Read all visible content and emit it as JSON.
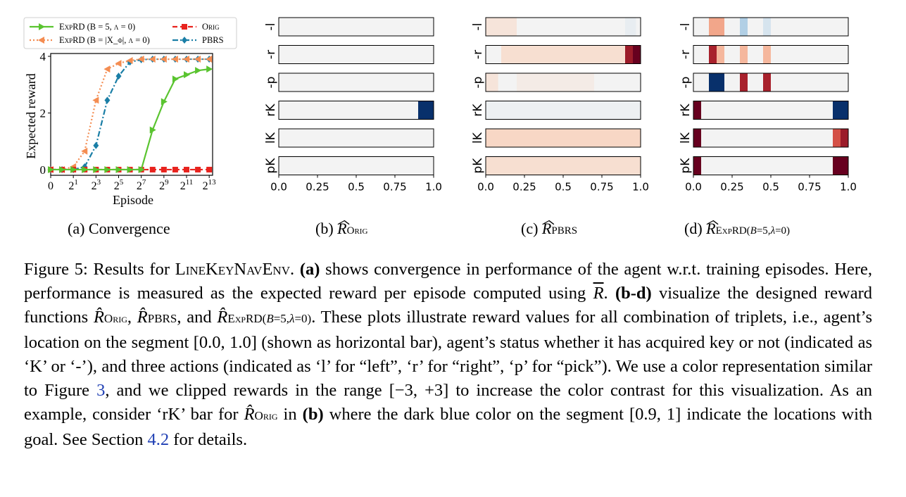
{
  "panel_a": {
    "ylabel": "Expected reward",
    "xlabel": "Episode",
    "caption": "(a) Convergence"
  },
  "panel_b_caption": "(b)",
  "panel_c_caption": "(c)",
  "panel_d_caption": "(d)",
  "chart_data": [
    {
      "type": "line",
      "xlabel": "Episode",
      "ylabel": "Expected reward",
      "ylim": [
        0,
        4
      ],
      "x_ticks": [
        "0",
        "2^1",
        "2^3",
        "2^5",
        "2^7",
        "2^9",
        "2^11",
        "2^13"
      ],
      "y_ticks": [
        "0",
        "2",
        "4"
      ],
      "legend": "top (above plot), 2 columns",
      "series": [
        {
          "name": "ExpRD (B = 5, λ = 0)",
          "color": "#5ac430",
          "style": "solid",
          "marker": "triangle-right",
          "x": [
            0,
            1,
            2,
            4,
            8,
            16,
            32,
            64,
            128,
            256,
            512,
            1024,
            2048,
            4096,
            8192
          ],
          "y": [
            0,
            0,
            0,
            0,
            0,
            0,
            0,
            0,
            0,
            1.4,
            2.4,
            3.2,
            3.35,
            3.5,
            3.55
          ]
        },
        {
          "name": "ExpRD (B = |X_φ|, λ = 0)",
          "color": "#f48d52",
          "style": "dotted",
          "marker": "triangle-left",
          "x": [
            0,
            1,
            2,
            4,
            8,
            16,
            32,
            64,
            128,
            256,
            512,
            1024,
            2048,
            4096,
            8192
          ],
          "y": [
            0,
            0,
            0.1,
            0.65,
            2.45,
            3.55,
            3.75,
            3.85,
            3.9,
            3.9,
            3.9,
            3.9,
            3.9,
            3.9,
            3.9
          ]
        },
        {
          "name": "Orig",
          "color": "#e8231e",
          "style": "dashed",
          "marker": "square",
          "x": [
            0,
            1,
            2,
            4,
            8,
            16,
            32,
            64,
            128,
            256,
            512,
            1024,
            2048,
            4096,
            8192
          ],
          "y": [
            0,
            0,
            0,
            0,
            0,
            0,
            0,
            0,
            0,
            0,
            0,
            0,
            0,
            0,
            0
          ]
        },
        {
          "name": "PBRS",
          "color": "#1a7ea6",
          "style": "dashdot",
          "marker": "diamond",
          "x": [
            0,
            1,
            2,
            4,
            8,
            16,
            32,
            64,
            128,
            256,
            512,
            1024,
            2048,
            4096,
            8192
          ],
          "y": [
            0,
            0,
            0,
            0.1,
            0.85,
            2.45,
            3.3,
            3.8,
            3.88,
            3.9,
            3.9,
            3.9,
            3.9,
            3.9,
            3.9
          ]
        }
      ]
    },
    {
      "type": "heatmap",
      "rows": [
        "-l",
        "-r",
        "-p",
        "rK",
        "lK",
        "pK"
      ],
      "x_ticks": [
        "0.0",
        "0.25",
        "0.5",
        "0.75",
        "1.0"
      ],
      "xlim": [
        0,
        1
      ],
      "clip": [
        -3,
        3
      ],
      "cells": [
        {
          "row": "rK",
          "x0": 0.9,
          "x1": 1.0,
          "value": 3
        }
      ]
    },
    {
      "type": "heatmap",
      "rows": [
        "-l",
        "-r",
        "-p",
        "rK",
        "lK",
        "pK"
      ],
      "x_ticks": [
        "0.0",
        "0.25",
        "0.5",
        "0.75",
        "1.0"
      ],
      "xlim": [
        0,
        1
      ],
      "clip": [
        -3,
        3
      ],
      "cells": [
        {
          "row": "-l",
          "x0": 0.0,
          "x1": 0.2,
          "value": -0.3
        },
        {
          "row": "-l",
          "x0": 0.9,
          "x1": 0.97,
          "value": 0.2
        },
        {
          "row": "-r",
          "x0": 0.1,
          "x1": 0.9,
          "value": -0.4
        },
        {
          "row": "-r",
          "x0": 0.9,
          "x1": 0.95,
          "value": -2.6
        },
        {
          "row": "-r",
          "x0": 0.95,
          "x1": 1.0,
          "value": -3
        },
        {
          "row": "-p",
          "x0": 0.0,
          "x1": 0.08,
          "value": -0.3
        },
        {
          "row": "-p",
          "x0": 0.2,
          "x1": 0.7,
          "value": -0.15
        },
        {
          "row": "rK",
          "x0": 0.0,
          "x1": 1.0,
          "value": 0.1
        },
        {
          "row": "lK",
          "x0": 0.0,
          "x1": 1.0,
          "value": -0.55
        },
        {
          "row": "pK",
          "x0": 0.0,
          "x1": 1.0,
          "value": -0.4
        }
      ]
    },
    {
      "type": "heatmap",
      "rows": [
        "-l",
        "-r",
        "-p",
        "rK",
        "lK",
        "pK"
      ],
      "x_ticks": [
        "0.0",
        "0.25",
        "0.5",
        "0.75",
        "1.0"
      ],
      "xlim": [
        0,
        1
      ],
      "clip": [
        -3,
        3
      ],
      "cells": [
        {
          "row": "-l",
          "x0": 0.1,
          "x1": 0.2,
          "value": -1.2
        },
        {
          "row": "-l",
          "x0": 0.3,
          "x1": 0.35,
          "value": 1.0
        },
        {
          "row": "-l",
          "x0": 0.45,
          "x1": 0.5,
          "value": 0.5
        },
        {
          "row": "-r",
          "x0": 0.1,
          "x1": 0.15,
          "value": -2.5
        },
        {
          "row": "-r",
          "x0": 0.15,
          "x1": 0.2,
          "value": -1.0
        },
        {
          "row": "-r",
          "x0": 0.3,
          "x1": 0.35,
          "value": -1.0
        },
        {
          "row": "-r",
          "x0": 0.45,
          "x1": 0.5,
          "value": -1.0
        },
        {
          "row": "-p",
          "x0": 0.1,
          "x1": 0.2,
          "value": 3
        },
        {
          "row": "-p",
          "x0": 0.3,
          "x1": 0.35,
          "value": -2.5
        },
        {
          "row": "-p",
          "x0": 0.45,
          "x1": 0.5,
          "value": -2.5
        },
        {
          "row": "rK",
          "x0": 0.0,
          "x1": 0.05,
          "value": -3
        },
        {
          "row": "rK",
          "x0": 0.9,
          "x1": 1.0,
          "value": 3
        },
        {
          "row": "lK",
          "x0": 0.0,
          "x1": 0.05,
          "value": -3
        },
        {
          "row": "lK",
          "x0": 0.9,
          "x1": 0.95,
          "value": -2.0
        },
        {
          "row": "lK",
          "x0": 0.95,
          "x1": 1.0,
          "value": -2.6
        },
        {
          "row": "pK",
          "x0": 0.0,
          "x1": 0.05,
          "value": -3
        },
        {
          "row": "pK",
          "x0": 0.9,
          "x1": 1.0,
          "value": -3
        }
      ]
    }
  ],
  "caption": {
    "figure_label": "Figure 5:",
    "env_name": "LineKeyNavEnv",
    "a_label": "(a)",
    "a_text": "shows convergence in performance of the agent w.r.t. training episodes. Here, performance is measured as the expected reward per episode computed using",
    "bd_label": "(b-d)",
    "bd_text": "visualize the designed reward functions",
    "body_1": "These plots illustrate reward values for all combination of triplets, i.e., agent’s location on the segment [0.0, 1.0] (shown as horizontal bar), agent’s status whether it has acquired key or not (indicated as ‘K’ or ‘-’), and three actions (indicated as ‘l’ for “left”, ‘r’ for “right”, ‘p’ for “pick”). We use a color representation similar to Figure",
    "fig_ref": "3",
    "body_2": ", and we clipped rewards in the range [−3, +3] to increase the color contrast for this visualization. As an example, consider ‘rK’ bar for",
    "b_label": "(b)",
    "body_3": "where the dark blue color on the segment [0.9, 1] indicate the locations with goal. See Section",
    "sec_ref": "4.2",
    "body_4": "for details."
  }
}
